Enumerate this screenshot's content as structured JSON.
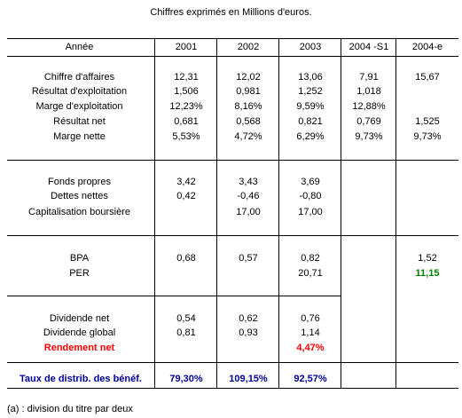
{
  "caption": "Chiffres exprimés en Millions d'euros.",
  "header": [
    "Année",
    "2001",
    "2002",
    "2003",
    "2004 -S1",
    "2004-e"
  ],
  "section1": [
    {
      "label": "Chiffre d'affaires",
      "v": [
        "12,31",
        "12,02",
        "13,06",
        "7,91",
        "15,67"
      ]
    },
    {
      "label": "Résultat d'exploitation",
      "v": [
        "1,506",
        "0,981",
        "1,252",
        "1,018",
        ""
      ]
    },
    {
      "label": "Marge d'exploitation",
      "v": [
        "12,23%",
        "8,16%",
        "9,59%",
        "12,88%",
        ""
      ]
    },
    {
      "label": "Résultat net",
      "v": [
        "0,681",
        "0,568",
        "0,821",
        "0,769",
        "1,525"
      ]
    },
    {
      "label": "Marge nette",
      "v": [
        "5,53%",
        "4,72%",
        "6,29%",
        "9,73%",
        "9,73%"
      ]
    }
  ],
  "section2": [
    {
      "label": "Fonds propres",
      "v": [
        "3,42",
        "3,43",
        "3,69",
        "",
        ""
      ]
    },
    {
      "label": "Dettes nettes",
      "v": [
        "0,42",
        "-0,46",
        "-0,80",
        "",
        ""
      ]
    },
    {
      "label": "Capitalisation boursière",
      "v": [
        "",
        "17,00",
        "17,00",
        "",
        ""
      ]
    }
  ],
  "section3": [
    {
      "label": "BPA",
      "v": [
        "0,68",
        "0,57",
        "0,82",
        "",
        "1,52"
      ]
    },
    {
      "label": "PER",
      "v": [
        "",
        "",
        "20,71",
        "",
        "11,15"
      ]
    }
  ],
  "section4": [
    {
      "label": "Dividende net",
      "v": [
        "0,54",
        "0,62",
        "0,76",
        "",
        ""
      ]
    },
    {
      "label": "Dividende global",
      "v": [
        "0,81",
        "0,93",
        "1,14",
        "",
        ""
      ]
    },
    {
      "label": "Rendement net",
      "v": [
        "",
        "",
        "4,47%",
        "",
        ""
      ]
    }
  ],
  "summary": {
    "label": "Taux de distrib. des bénéf.",
    "v": [
      "79,30%",
      "109,15%",
      "92,57%",
      "",
      ""
    ]
  },
  "footnote": "(a) : division du titre par deux",
  "colors": {
    "red": "#ff0000",
    "green": "#008000",
    "blue": "#000099"
  }
}
